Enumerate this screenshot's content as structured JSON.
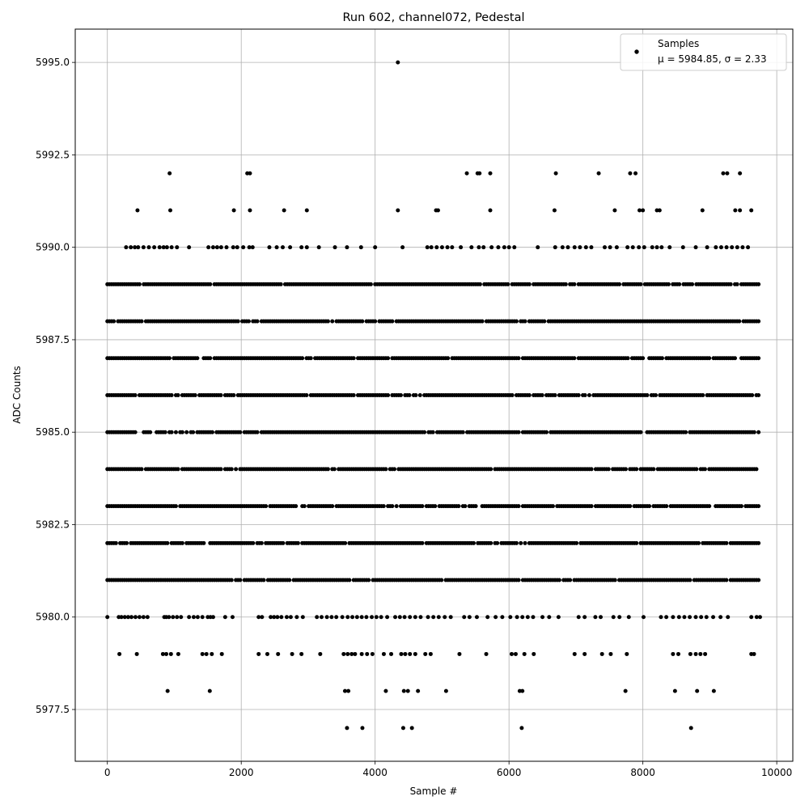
{
  "chart_data": {
    "type": "scatter",
    "title": "Run 602, channel072, Pedestal",
    "xlabel": "Sample #",
    "ylabel": "ADC Counts",
    "xlim": [
      -480,
      10240
    ],
    "ylim": [
      5976.1,
      5995.9
    ],
    "xticks": [
      0,
      2000,
      4000,
      6000,
      8000,
      10000
    ],
    "xtick_labels": [
      "0",
      "2000",
      "4000",
      "6000",
      "8000",
      "10000"
    ],
    "yticks": [
      5977.5,
      5980.0,
      5982.5,
      5985.0,
      5987.5,
      5990.0,
      5992.5,
      5995.0
    ],
    "ytick_labels": [
      "5977.5",
      "5980.0",
      "5982.5",
      "5985.0",
      "5987.5",
      "5990.0",
      "5992.5",
      "5995.0"
    ],
    "grid": true,
    "legend": {
      "position": "top-right",
      "entries": [
        {
          "label": "Samples",
          "stats": "μ = 5984.85, σ = 2.33",
          "marker": "circle"
        }
      ]
    },
    "marker_color": "#000000",
    "series": [
      {
        "name": "Samples",
        "n_samples": 9750,
        "dense_levels": [
          {
            "y": 5981,
            "x_min": 0,
            "x_max": 9750
          },
          {
            "y": 5982,
            "x_min": 0,
            "x_max": 9750
          },
          {
            "y": 5983,
            "x_min": 0,
            "x_max": 9750
          },
          {
            "y": 5984,
            "x_min": 0,
            "x_max": 9750
          },
          {
            "y": 5985,
            "x_min": 0,
            "x_max": 9750
          },
          {
            "y": 5986,
            "x_min": 0,
            "x_max": 9750
          },
          {
            "y": 5987,
            "x_min": 0,
            "x_max": 9750
          },
          {
            "y": 5988,
            "x_min": 0,
            "x_max": 9750
          },
          {
            "y": 5989,
            "x_min": 0,
            "x_max": 9750
          }
        ],
        "sparse_levels": [
          {
            "y": 5980,
            "x": [
              0,
              170,
              210,
              260,
              310,
              360,
              420,
              480,
              540,
              600,
              850,
              880,
              920,
              980,
              1040,
              1100,
              1220,
              1290,
              1350,
              1420,
              1500,
              1540,
              1580,
              1760,
              1870,
              2260,
              2310,
              2440,
              2490,
              2540,
              2600,
              2680,
              2740,
              2830,
              2920,
              3130,
              3200,
              3280,
              3350,
              3420,
              3510,
              3590,
              3660,
              3730,
              3800,
              3870,
              3950,
              4020,
              4090,
              4180,
              4300,
              4370,
              4440,
              4520,
              4600,
              4680,
              4790,
              4870,
              4950,
              5040,
              5130,
              5330,
              5410,
              5520,
              5680,
              5800,
              5900,
              6020,
              6120,
              6200,
              6280,
              6360,
              6500,
              6600,
              6740,
              7040,
              7130,
              7290,
              7370,
              7560,
              7650,
              7790,
              8010,
              8270,
              8350,
              8450,
              8540,
              8620,
              8700,
              8790,
              8870,
              8950,
              9050,
              9160,
              9270,
              9620,
              9700,
              9750
            ]
          },
          {
            "y": 5990,
            "x": [
              280,
              350,
              410,
              460,
              540,
              620,
              700,
              780,
              840,
              890,
              960,
              1040,
              1220,
              1510,
              1580,
              1640,
              1700,
              1780,
              1880,
              1940,
              2030,
              2120,
              2170,
              2420,
              2530,
              2620,
              2730,
              2900,
              2980,
              3160,
              3400,
              3580,
              3790,
              4000,
              4410,
              4780,
              4840,
              4920,
              5000,
              5080,
              5150,
              5280,
              5440,
              5550,
              5620,
              5740,
              5840,
              5930,
              6000,
              6080,
              6430,
              6690,
              6800,
              6880,
              6980,
              7060,
              7150,
              7230,
              7430,
              7510,
              7610,
              7770,
              7850,
              7940,
              8020,
              8140,
              8210,
              8280,
              8400,
              8600,
              8790,
              8960,
              9090,
              9170,
              9250,
              9330,
              9410,
              9490,
              9570
            ]
          },
          {
            "y": 5979,
            "x": [
              180,
              440,
              830,
              880,
              950,
              1060,
              1420,
              1480,
              1560,
              1710,
              2260,
              2390,
              2550,
              2760,
              2900,
              3180,
              3530,
              3590,
              3650,
              3700,
              3800,
              3880,
              3960,
              4130,
              4240,
              4390,
              4450,
              4520,
              4600,
              4750,
              4830,
              5260,
              5660,
              6040,
              6100,
              6230,
              6370,
              6980,
              7130,
              7390,
              7520,
              7760,
              8450,
              8530,
              8710,
              8790,
              8860,
              8930,
              9620,
              9660
            ]
          },
          {
            "y": 5978,
            "x": [
              900,
              1530,
              3550,
              3600,
              4160,
              4430,
              4490,
              4640,
              5060,
              6160,
              6200,
              7740,
              8480,
              8810,
              9060
            ]
          },
          {
            "y": 5977,
            "x": [
              3580,
              3810,
              4420,
              4550,
              6190,
              8720
            ]
          },
          {
            "y": 5991,
            "x": [
              450,
              940,
              1890,
              2130,
              2640,
              2980,
              4340,
              4910,
              4940,
              5720,
              6680,
              7580,
              7950,
              8000,
              8210,
              8250,
              8890,
              9380,
              9450,
              9620
            ]
          },
          {
            "y": 5992,
            "x": [
              930,
              2090,
              2130,
              5370,
              5530,
              5560,
              5720,
              6700,
              7340,
              7810,
              7890,
              9200,
              9260,
              9450
            ]
          },
          {
            "y": 5995,
            "x": [
              4340
            ]
          }
        ]
      }
    ]
  }
}
